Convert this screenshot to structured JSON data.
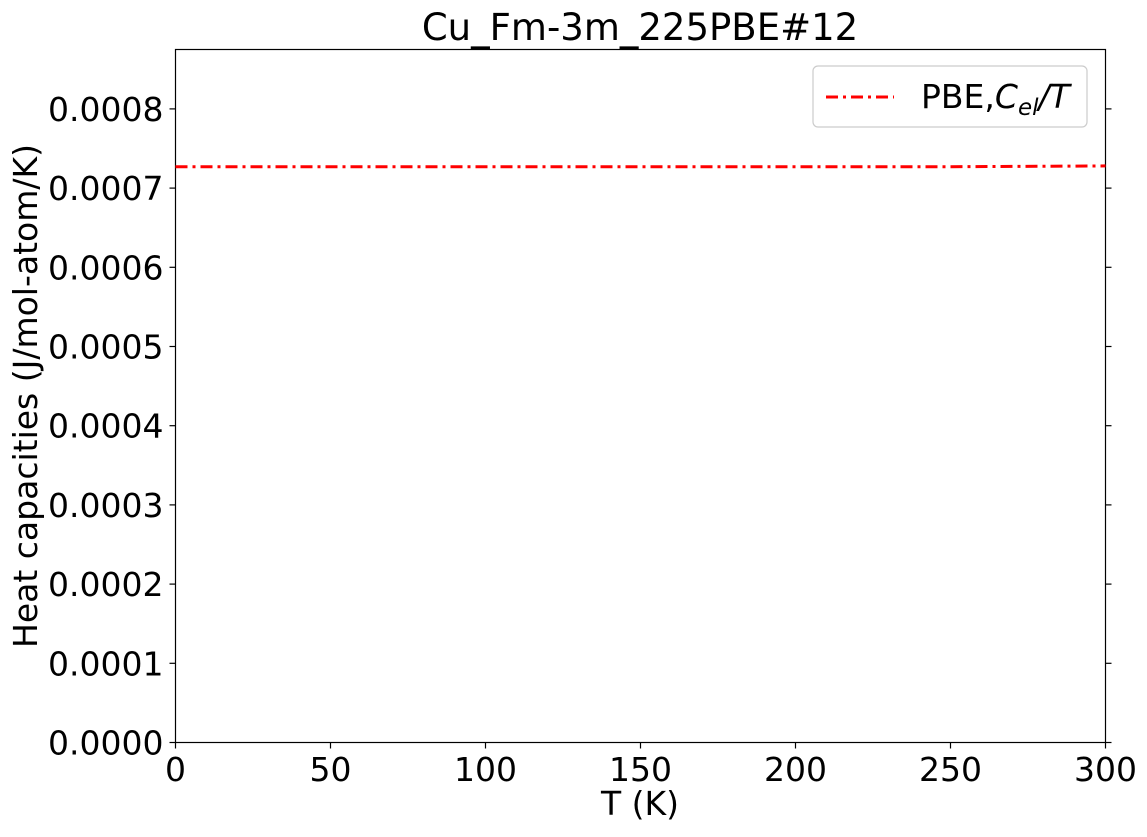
{
  "chart_data": {
    "type": "line",
    "title": "Cu_Fm-3m_225PBE#12",
    "xlabel": "T (K)",
    "ylabel": "Heat capacities (J/mol-atom/K)",
    "xlim": [
      0,
      300
    ],
    "ylim": [
      0,
      0.000875
    ],
    "xticks": [
      "0",
      "50",
      "100",
      "150",
      "200",
      "250",
      "300"
    ],
    "yticks": [
      "0.0000",
      "0.0001",
      "0.0002",
      "0.0003",
      "0.0004",
      "0.0005",
      "0.0006",
      "0.0007",
      "0.0008"
    ],
    "grid": false,
    "legend_position": "upper right",
    "series": [
      {
        "name": "PBE,C_el/T",
        "legend_main": "PBE,",
        "legend_italic_c": "C",
        "legend_sub": "el",
        "legend_tail": "/T",
        "color": "#ff0000",
        "line_style": "dash-dot",
        "x": [
          0,
          50,
          100,
          150,
          200,
          250,
          300
        ],
        "y": [
          0.000727,
          0.000727,
          0.000727,
          0.000727,
          0.000727,
          0.000727,
          0.000728
        ]
      }
    ]
  }
}
